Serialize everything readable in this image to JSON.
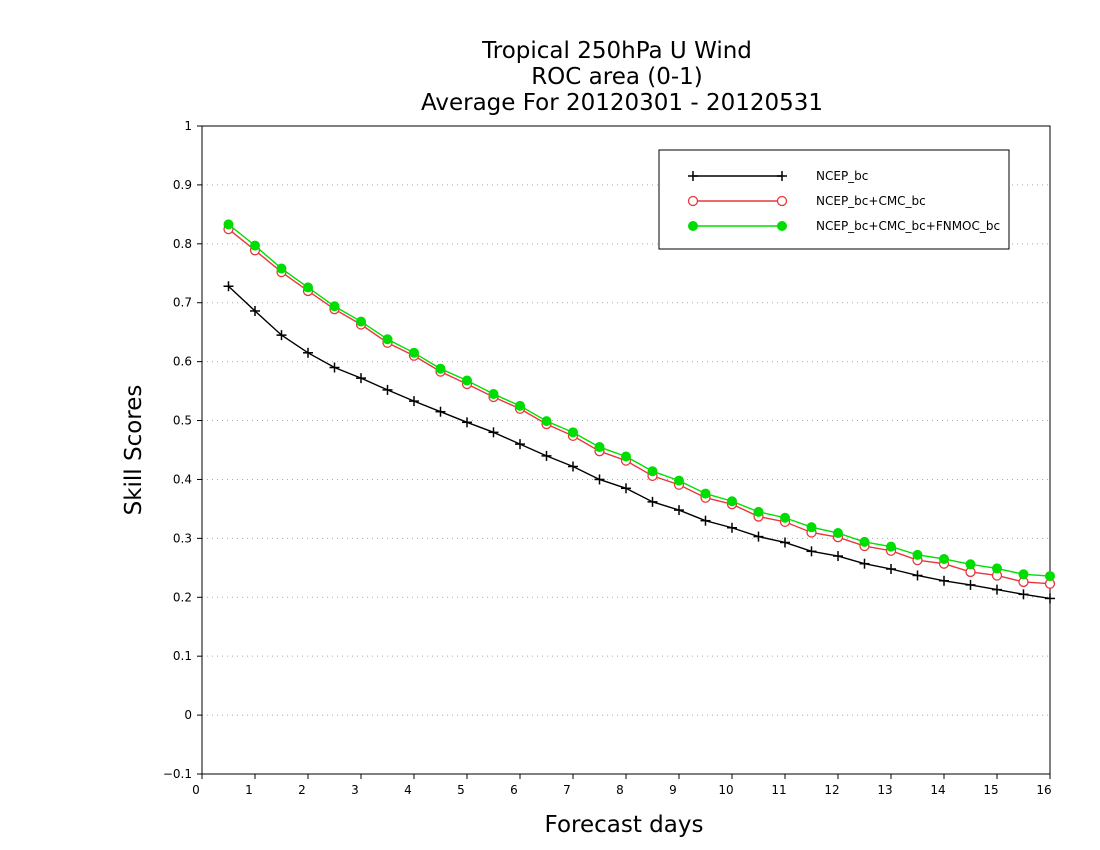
{
  "chart_data": {
    "type": "line",
    "title_lines": [
      "Tropical 250hPa U Wind",
      "ROC area (0-1)",
      "Average For 20120301 - 20120531"
    ],
    "xlabel": "Forecast days",
    "ylabel": "Skill Scores",
    "xlim": [
      0,
      16
    ],
    "ylim": [
      -0.1,
      1
    ],
    "xticks": [
      0,
      1,
      2,
      3,
      4,
      5,
      6,
      7,
      8,
      9,
      10,
      11,
      12,
      13,
      14,
      15,
      16
    ],
    "yticks": [
      -0.1,
      0,
      0.1,
      0.2,
      0.3,
      0.4,
      0.5,
      0.6,
      0.7,
      0.8,
      0.9,
      1
    ],
    "ytick_labels": [
      "−0.1",
      "0",
      "0.1",
      "0.2",
      "0.3",
      "0.4",
      "0.5",
      "0.6",
      "0.7",
      "0.8",
      "0.9",
      "1"
    ],
    "grid": "horizontal-dotted",
    "legend_position": "top-right",
    "x": [
      0.5,
      1,
      1.5,
      2,
      2.5,
      3,
      3.5,
      4,
      4.5,
      5,
      5.5,
      6,
      6.5,
      7,
      7.5,
      8,
      8.5,
      9,
      9.5,
      10,
      10.5,
      11,
      11.5,
      12,
      12.5,
      13,
      13.5,
      14,
      14.5,
      15,
      15.5,
      16
    ],
    "series": [
      {
        "name": "NCEP_bc",
        "color": "#000000",
        "marker": "plus",
        "values": [
          0.728,
          0.686,
          0.645,
          0.615,
          0.59,
          0.572,
          0.552,
          0.533,
          0.515,
          0.497,
          0.48,
          0.46,
          0.44,
          0.422,
          0.4,
          0.385,
          0.362,
          0.348,
          0.33,
          0.318,
          0.303,
          0.293,
          0.278,
          0.27,
          0.257,
          0.248,
          0.237,
          0.228,
          0.221,
          0.213,
          0.205,
          0.198
        ]
      },
      {
        "name": "NCEP_bc+CMC_bc",
        "color": "#e8373c",
        "marker": "open-circle",
        "values": [
          0.825,
          0.789,
          0.752,
          0.72,
          0.689,
          0.663,
          0.632,
          0.61,
          0.583,
          0.562,
          0.54,
          0.52,
          0.494,
          0.474,
          0.448,
          0.432,
          0.406,
          0.391,
          0.369,
          0.358,
          0.337,
          0.328,
          0.31,
          0.302,
          0.287,
          0.279,
          0.263,
          0.257,
          0.243,
          0.237,
          0.226,
          0.223
        ]
      },
      {
        "name": "NCEP_bc+CMC_bc+FNMOC_bc",
        "color": "#00dd00",
        "marker": "filled-circle",
        "values": [
          0.833,
          0.797,
          0.758,
          0.726,
          0.694,
          0.668,
          0.638,
          0.615,
          0.588,
          0.568,
          0.545,
          0.525,
          0.499,
          0.48,
          0.455,
          0.439,
          0.414,
          0.398,
          0.376,
          0.363,
          0.345,
          0.335,
          0.319,
          0.309,
          0.294,
          0.286,
          0.272,
          0.265,
          0.256,
          0.249,
          0.239,
          0.236
        ]
      }
    ]
  }
}
